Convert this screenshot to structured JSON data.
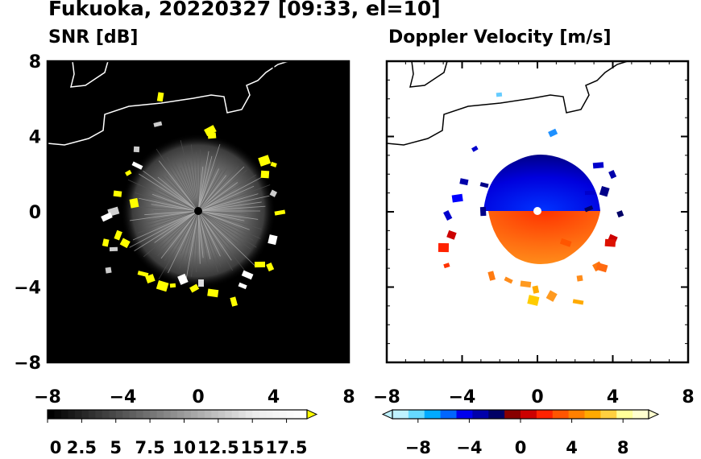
{
  "title": "Fukuoka, 20220327 [09:33, el=10]",
  "chart_data": [
    {
      "type": "heatmap",
      "title": "SNR [dB]",
      "xlim": [
        -8,
        8
      ],
      "ylim": [
        -8,
        8
      ],
      "x_ticks": [
        "−8",
        "−4",
        "0",
        "4",
        "8"
      ],
      "y_ticks": [
        "8",
        "4",
        "0",
        "−4",
        "−8"
      ],
      "background": "#000000",
      "colorbar": {
        "tick_labels": [
          "0",
          "2.5",
          "5",
          "7.5",
          "10",
          "12.5",
          "15",
          "17.5"
        ],
        "tick_values": [
          0,
          2.5,
          5,
          7.5,
          10,
          12.5,
          15,
          17.5
        ],
        "range": [
          0,
          19
        ],
        "extend": "max",
        "colors": [
          "#000000",
          "#ffffff",
          "#ffff00"
        ]
      }
    },
    {
      "type": "heatmap",
      "title": "Doppler Velocity [m/s]",
      "xlim": [
        -8,
        8
      ],
      "ylim": [
        -8,
        8
      ],
      "x_ticks": [
        "−8",
        "−4",
        "0",
        "4",
        "8"
      ],
      "y_ticks": [
        "8",
        "4",
        "0",
        "−4",
        "−8"
      ],
      "background": "#ffffff",
      "colorbar": {
        "tick_labels": [
          "−8",
          "−4",
          "0",
          "4",
          "8"
        ],
        "tick_values": [
          -8,
          -4,
          0,
          4,
          8
        ],
        "range": [
          -10,
          10
        ],
        "extend": "both",
        "colors": [
          "#bff2ff",
          "#00aaff",
          "#0000cc",
          "#000066",
          "#cc0000",
          "#ff5500",
          "#ffaa00",
          "#ffffbf"
        ]
      }
    }
  ]
}
